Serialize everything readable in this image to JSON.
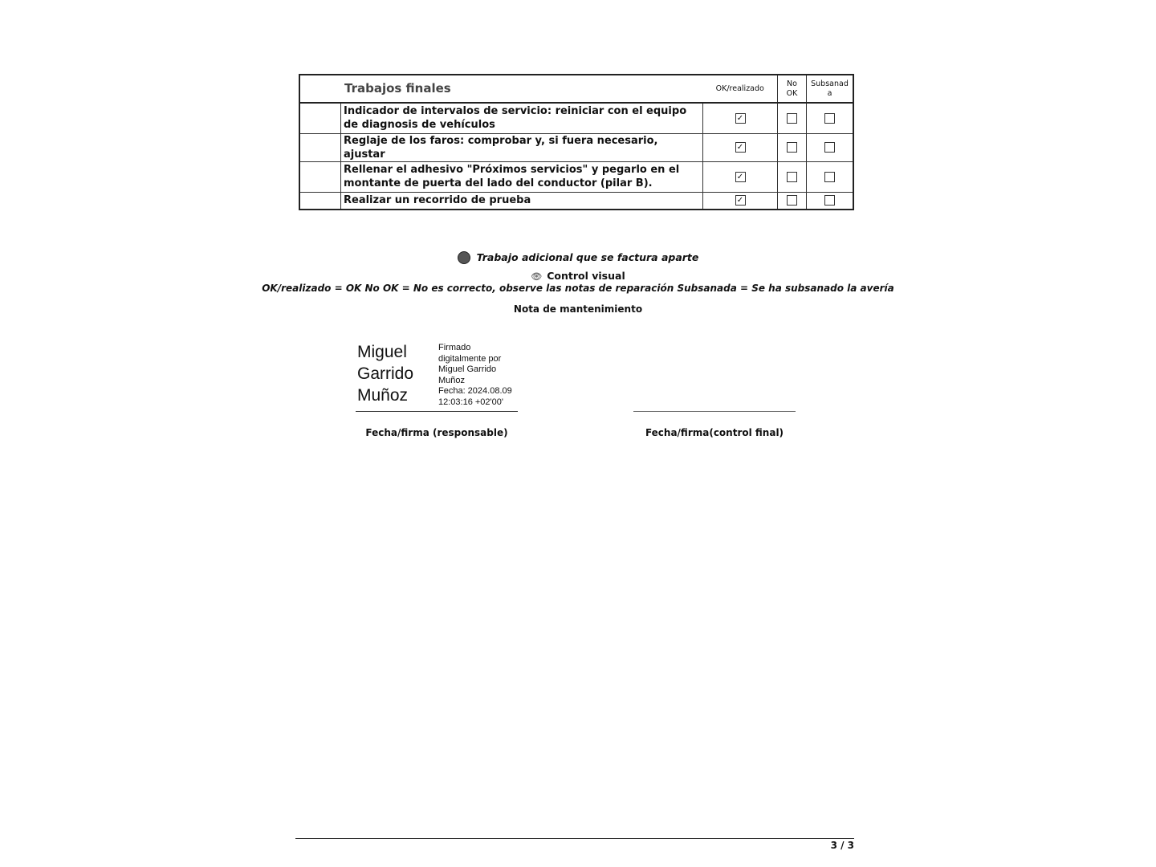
{
  "table": {
    "title": "Trabajos finales",
    "columns": [
      "OK/realizado",
      "No OK",
      "Subsanada"
    ],
    "rows": [
      {
        "text": "Indicador de intervalos de servicio: reiniciar con el equipo de diagnosis de vehículos",
        "ok": true,
        "no_ok": false,
        "subsanada": false
      },
      {
        "text": "Reglaje de los faros: comprobar y, si fuera necesario, ajustar",
        "ok": true,
        "no_ok": false,
        "subsanada": false
      },
      {
        "text": "Rellenar el adhesivo \"Próximos servicios\" y pegarlo en el montante de puerta del lado del conductor (pilar B).",
        "ok": true,
        "no_ok": false,
        "subsanada": false
      },
      {
        "text": "Realizar un recorrido de prueba",
        "ok": true,
        "no_ok": false,
        "subsanada": false
      }
    ]
  },
  "legend": {
    "additional_work": "Trabajo adicional que se factura aparte",
    "visual_control": "Control visual",
    "explanation": "OK/realizado = OK No OK = No es correcto, observe las notas de reparación Subsanada = Se ha subsanado la avería",
    "note_title": "Nota de mantenimiento"
  },
  "signature": {
    "name_lines": [
      "Miguel",
      "Garrido",
      "Muñoz"
    ],
    "details": [
      "Firmado",
      "digitalmente por",
      "Miguel Garrido",
      "Muñoz",
      "Fecha: 2024.08.09",
      "12:03:16 +02'00'"
    ],
    "label_responsible": "Fecha/firma (responsable)",
    "label_final": "Fecha/firma(control final)"
  },
  "footer": {
    "page": "3 / 3"
  }
}
